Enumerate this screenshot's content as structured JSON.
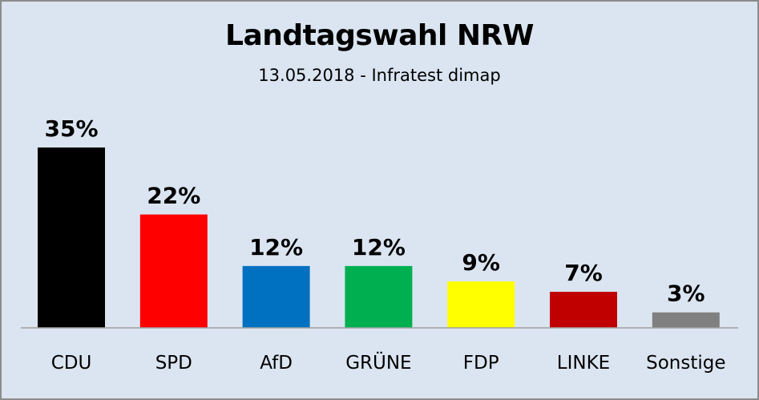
{
  "chart_data": {
    "type": "bar",
    "title": "Landtagswahl NRW",
    "subtitle": "13.05.2018 - Infratest dimap",
    "xlabel": "",
    "ylabel": "",
    "ylim": [
      0,
      35
    ],
    "grid": false,
    "legend": "none",
    "categories": [
      "CDU",
      "SPD",
      "AfD",
      "GRÜNE",
      "FDP",
      "LINKE",
      "Sonstige"
    ],
    "values": [
      35,
      22,
      12,
      12,
      9,
      7,
      3
    ],
    "value_labels": [
      "35%",
      "22%",
      "12%",
      "12%",
      "9%",
      "7%",
      "3%"
    ],
    "colors": [
      "#000000",
      "#ff0000",
      "#0070c0",
      "#00b050",
      "#ffff00",
      "#c00000",
      "#808080"
    ]
  }
}
